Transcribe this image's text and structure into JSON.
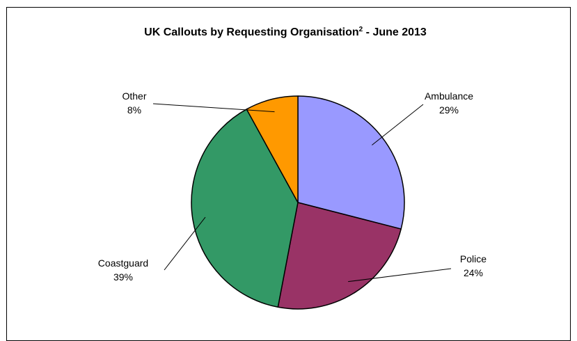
{
  "chart_data": {
    "type": "pie",
    "title": "UK Callouts by Requesting Organisation",
    "title_superscript": "2",
    "title_suffix": " - June 2013",
    "start_angle_deg": 0,
    "direction": "clockwise",
    "slices": [
      {
        "label": "Ambulance",
        "value": 29,
        "value_label": "29%",
        "color": "#9999ff"
      },
      {
        "label": "Police",
        "value": 24,
        "value_label": "24%",
        "color": "#993366"
      },
      {
        "label": "Coastguard",
        "value": 39,
        "value_label": "39%",
        "color": "#339966"
      },
      {
        "label": "Other",
        "value": 8,
        "value_label": "8%",
        "color": "#ff9900"
      }
    ]
  }
}
